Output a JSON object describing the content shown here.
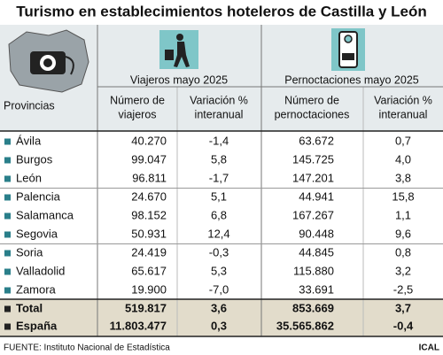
{
  "title": "Turismo en establecimientos hoteleros de Castilla y León",
  "groups": [
    "Viajeros mayo 2025",
    "Pernoctaciones mayo 2025"
  ],
  "columns": [
    [
      "Provincias"
    ],
    [
      "Número de",
      "viajeros"
    ],
    [
      "Variación %",
      "interanual"
    ],
    [
      "Número de",
      "pernoctaciones"
    ],
    [
      "Variación %",
      "interanual"
    ]
  ],
  "rows": [
    [
      "Ávila",
      "40.270",
      "-1,4",
      "63.672",
      "0,7"
    ],
    [
      "Burgos",
      "99.047",
      "5,8",
      "145.725",
      "4,0"
    ],
    [
      "León",
      "96.811",
      "-1,7",
      "147.201",
      "3,8"
    ],
    [
      "Palencia",
      "24.670",
      "5,1",
      "44.941",
      "15,8"
    ],
    [
      "Salamanca",
      "98.152",
      "6,8",
      "167.267",
      "1,1"
    ],
    [
      "Segovia",
      "50.931",
      "12,4",
      "90.448",
      "9,6"
    ],
    [
      "Soria",
      "24.419",
      "-0,3",
      "44.845",
      "0,8"
    ],
    [
      "Valladolid",
      "65.617",
      "5,3",
      "115.880",
      "3,2"
    ],
    [
      "Zamora",
      "19.900",
      "-7,0",
      "33.691",
      "-2,5"
    ]
  ],
  "totals": [
    [
      "Total",
      "519.817",
      "3,6",
      "853.669",
      "3,7"
    ],
    [
      "España",
      "11.803.477",
      "0,3",
      "35.565.862",
      "-0,4"
    ]
  ],
  "source": "FUENTE: Instituto Nacional de Estadística",
  "credit": "ICAL"
}
